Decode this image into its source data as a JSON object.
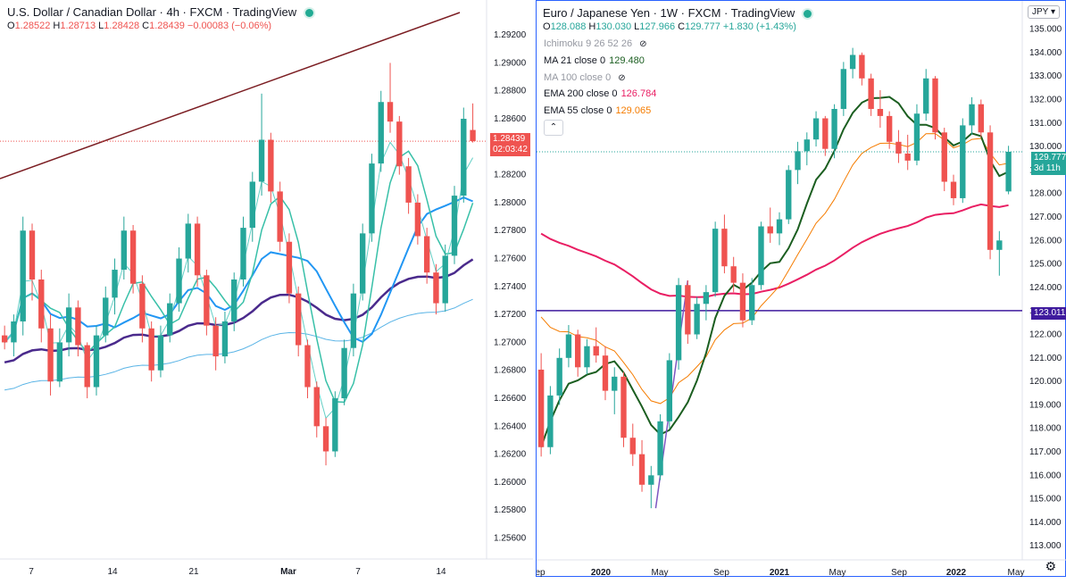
{
  "left_chart": {
    "title": "U.S. Dollar / Canadian Dollar · 4h · FXCM · TradingView",
    "ohlc": {
      "o": "1.28522",
      "h": "1.28713",
      "l": "1.28428",
      "c": "1.28439",
      "chg": "−0.00083 (−0.06%)"
    },
    "price_tag": {
      "value": "1.28439",
      "countdown": "02:03:42"
    },
    "colors": {
      "up": "#26a69a",
      "down": "#ef5350",
      "trendline": "#7b1d22",
      "ma_fast": "#38c0a8",
      "ma_mid": "#2196f3",
      "ma_slow": "#4a2a8c",
      "ma_long": "#5ab4e6"
    }
  },
  "right_chart": {
    "title": "Euro / Japanese Yen · 1W · FXCM · TradingView",
    "ohlc": {
      "o": "128.088",
      "h": "130.030",
      "l": "127.966",
      "c": "129.777",
      "chg": "+1.830 (+1.43%)"
    },
    "indicators": [
      {
        "label": "Ichimoku 9 26 52 26",
        "value": "",
        "hidden": true,
        "color": "#9598a1"
      },
      {
        "label": "MA 21 close 0",
        "value": "129.480",
        "hidden": false,
        "color": "#1b5e20"
      },
      {
        "label": "MA 100 close 0",
        "value": "",
        "hidden": true,
        "color": "#9598a1"
      },
      {
        "label": "EMA 200 close 0",
        "value": "126.784",
        "hidden": false,
        "color": "#e91e63"
      },
      {
        "label": "EMA 55 close 0",
        "value": "129.065",
        "hidden": false,
        "color": "#f57c00"
      }
    ],
    "currency": "JPY",
    "price_tag": {
      "value": "129.777",
      "countdown": "3d 11h"
    },
    "hline_tag": "123.011",
    "colors": {
      "up": "#26a69a",
      "down": "#ef5350",
      "ma21": "#1b5e20",
      "ema200": "#e91e63",
      "ema55": "#f57c00",
      "hline": "#3f1b9e",
      "trend": "#7e57c2"
    }
  },
  "chart_data": [
    {
      "type": "candlestick",
      "title": "U.S. Dollar / Canadian Dollar · 4h · FXCM · TradingView",
      "ylim": [
        1.2545,
        1.2945
      ],
      "y_ticks": [
        "1.29200",
        "1.29000",
        "1.28800",
        "1.28600",
        "1.28400",
        "1.28200",
        "1.28000",
        "1.27800",
        "1.27600",
        "1.27400",
        "1.27200",
        "1.27000",
        "1.26800",
        "1.26600",
        "1.26400",
        "1.26200",
        "1.26000",
        "1.25800",
        "1.25600"
      ],
      "x_ticks": [
        {
          "label": "7",
          "bold": false
        },
        {
          "label": "14",
          "bold": false
        },
        {
          "label": "21",
          "bold": false
        },
        {
          "label": "Mar",
          "bold": true
        },
        {
          "label": "7",
          "bold": false
        },
        {
          "label": "14",
          "bold": false
        }
      ],
      "candles": [
        [
          1.2705,
          1.2712,
          1.2695,
          1.27
        ],
        [
          1.27,
          1.272,
          1.269,
          1.2715
        ],
        [
          1.2715,
          1.279,
          1.2705,
          1.278
        ],
        [
          1.278,
          1.2785,
          1.273,
          1.2745
        ],
        [
          1.2745,
          1.2752,
          1.27,
          1.271
        ],
        [
          1.271,
          1.272,
          1.2662,
          1.2672
        ],
        [
          1.2672,
          1.271,
          1.2668,
          1.27
        ],
        [
          1.27,
          1.2735,
          1.269,
          1.2725
        ],
        [
          1.2725,
          1.273,
          1.269,
          1.2698
        ],
        [
          1.2698,
          1.27,
          1.266,
          1.2668
        ],
        [
          1.2668,
          1.2712,
          1.2662,
          1.2705
        ],
        [
          1.2705,
          1.274,
          1.27,
          1.2732
        ],
        [
          1.2732,
          1.276,
          1.272,
          1.2752
        ],
        [
          1.2752,
          1.279,
          1.2745,
          1.278
        ],
        [
          1.278,
          1.2784,
          1.2735,
          1.2742
        ],
        [
          1.2742,
          1.2748,
          1.27,
          1.271
        ],
        [
          1.271,
          1.2715,
          1.2672,
          1.268
        ],
        [
          1.268,
          1.2712,
          1.2675,
          1.2705
        ],
        [
          1.2705,
          1.2735,
          1.27,
          1.2728
        ],
        [
          1.2728,
          1.2768,
          1.2722,
          1.276
        ],
        [
          1.276,
          1.2792,
          1.275,
          1.2785
        ],
        [
          1.2785,
          1.279,
          1.274,
          1.2748
        ],
        [
          1.2748,
          1.2752,
          1.2705,
          1.2712
        ],
        [
          1.2712,
          1.2718,
          1.268,
          1.269
        ],
        [
          1.269,
          1.2722,
          1.2685,
          1.2715
        ],
        [
          1.2715,
          1.275,
          1.2708,
          1.2745
        ],
        [
          1.2745,
          1.279,
          1.274,
          1.2782
        ],
        [
          1.2782,
          1.2822,
          1.2772,
          1.2815
        ],
        [
          1.2815,
          1.2878,
          1.2805,
          1.2845
        ],
        [
          1.2845,
          1.285,
          1.28,
          1.2808
        ],
        [
          1.2808,
          1.2815,
          1.2765,
          1.2772
        ],
        [
          1.2772,
          1.2778,
          1.2728,
          1.2735
        ],
        [
          1.2735,
          1.274,
          1.269,
          1.2698
        ],
        [
          1.2698,
          1.2702,
          1.266,
          1.2668
        ],
        [
          1.2668,
          1.2672,
          1.2632,
          1.264
        ],
        [
          1.264,
          1.2646,
          1.2612,
          1.2622
        ],
        [
          1.2622,
          1.2665,
          1.2618,
          1.266
        ],
        [
          1.266,
          1.2702,
          1.2655,
          1.2696
        ],
        [
          1.2696,
          1.2742,
          1.269,
          1.2735
        ],
        [
          1.2735,
          1.2785,
          1.273,
          1.2778
        ],
        [
          1.2778,
          1.2835,
          1.2772,
          1.2828
        ],
        [
          1.2828,
          1.288,
          1.2822,
          1.2872
        ],
        [
          1.2872,
          1.29,
          1.285,
          1.2858
        ],
        [
          1.2858,
          1.2862,
          1.282,
          1.2826
        ],
        [
          1.2826,
          1.2832,
          1.2792,
          1.28
        ],
        [
          1.28,
          1.2806,
          1.277,
          1.2776
        ],
        [
          1.2776,
          1.2782,
          1.2742,
          1.275
        ],
        [
          1.275,
          1.2756,
          1.272,
          1.2728
        ],
        [
          1.2728,
          1.277,
          1.2722,
          1.2762
        ],
        [
          1.2762,
          1.2812,
          1.2756,
          1.2805
        ],
        [
          1.2805,
          1.2868,
          1.28,
          1.286
        ],
        [
          1.2852,
          1.2871,
          1.2843,
          1.2844
        ]
      ]
    },
    {
      "type": "candlestick",
      "title": "Euro / Japanese Yen · 1W · FXCM · TradingView",
      "ylim": [
        112.4,
        136.2
      ],
      "y_ticks": [
        "135.000",
        "134.000",
        "133.000",
        "132.000",
        "131.000",
        "130.000",
        "129.000",
        "128.000",
        "127.000",
        "126.000",
        "125.000",
        "124.000",
        "123.000",
        "122.000",
        "121.000",
        "120.000",
        "119.000",
        "118.000",
        "117.000",
        "116.000",
        "115.000",
        "114.000",
        "113.000"
      ],
      "x_ticks": [
        {
          "label": "ep",
          "bold": false
        },
        {
          "label": "2020",
          "bold": true
        },
        {
          "label": "May",
          "bold": false
        },
        {
          "label": "Sep",
          "bold": false
        },
        {
          "label": "2021",
          "bold": true
        },
        {
          "label": "May",
          "bold": false
        },
        {
          "label": "Sep",
          "bold": false
        },
        {
          "label": "2022",
          "bold": true
        },
        {
          "label": "May",
          "bold": false
        }
      ],
      "hline": 123.011,
      "candles": [
        [
          120.5,
          121.2,
          116.8,
          117.2
        ],
        [
          117.2,
          119.8,
          116.9,
          119.4
        ],
        [
          119.4,
          121.4,
          119.0,
          121.0
        ],
        [
          121.0,
          122.4,
          120.6,
          122.0
        ],
        [
          122.0,
          122.2,
          120.2,
          120.6
        ],
        [
          120.6,
          121.8,
          120.3,
          121.5
        ],
        [
          121.5,
          122.3,
          120.8,
          121.1
        ],
        [
          121.1,
          121.5,
          119.2,
          119.6
        ],
        [
          119.6,
          120.6,
          118.6,
          120.2
        ],
        [
          120.2,
          120.4,
          117.2,
          117.6
        ],
        [
          117.6,
          118.2,
          116.4,
          116.9
        ],
        [
          116.9,
          117.5,
          115.3,
          115.6
        ],
        [
          115.6,
          116.4,
          114.6,
          116.0
        ],
        [
          116.0,
          118.6,
          115.8,
          118.3
        ],
        [
          118.3,
          121.2,
          118.0,
          120.9
        ],
        [
          120.9,
          124.4,
          120.5,
          124.1
        ],
        [
          124.1,
          124.3,
          121.6,
          122.0
        ],
        [
          122.0,
          123.6,
          121.8,
          123.3
        ],
        [
          123.3,
          124.1,
          122.6,
          123.8
        ],
        [
          123.8,
          126.8,
          123.6,
          126.5
        ],
        [
          126.5,
          127.1,
          124.6,
          124.9
        ],
        [
          124.9,
          125.3,
          123.8,
          124.2
        ],
        [
          124.2,
          124.6,
          122.3,
          122.6
        ],
        [
          122.6,
          124.4,
          122.4,
          124.1
        ],
        [
          124.1,
          126.8,
          123.9,
          126.6
        ],
        [
          126.6,
          127.4,
          125.9,
          126.3
        ],
        [
          126.3,
          127.2,
          125.8,
          126.9
        ],
        [
          126.9,
          129.2,
          126.7,
          129.0
        ],
        [
          129.0,
          130.2,
          128.4,
          129.8
        ],
        [
          129.8,
          130.6,
          129.2,
          130.3
        ],
        [
          130.3,
          131.5,
          130.0,
          131.2
        ],
        [
          131.2,
          131.3,
          129.6,
          129.9
        ],
        [
          129.9,
          131.8,
          129.5,
          131.6
        ],
        [
          131.6,
          133.6,
          131.3,
          133.3
        ],
        [
          133.3,
          134.2,
          132.9,
          133.9
        ],
        [
          133.9,
          134.0,
          132.6,
          132.9
        ],
        [
          132.9,
          133.1,
          131.3,
          131.6
        ],
        [
          131.6,
          132.4,
          130.8,
          131.3
        ],
        [
          131.3,
          131.5,
          129.9,
          130.2
        ],
        [
          130.2,
          130.7,
          129.3,
          129.7
        ],
        [
          129.7,
          130.5,
          129.0,
          129.4
        ],
        [
          129.4,
          131.8,
          129.2,
          131.4
        ],
        [
          131.4,
          133.3,
          131.1,
          132.9
        ],
        [
          132.9,
          133.0,
          130.3,
          130.6
        ],
        [
          130.6,
          130.8,
          128.1,
          128.5
        ],
        [
          128.5,
          128.8,
          127.5,
          127.8
        ],
        [
          127.8,
          131.2,
          127.6,
          130.9
        ],
        [
          130.9,
          132.1,
          130.5,
          131.8
        ],
        [
          131.8,
          132.0,
          130.4,
          130.6
        ],
        [
          130.6,
          130.9,
          125.2,
          125.6
        ],
        [
          125.6,
          126.4,
          124.5,
          126.0
        ],
        [
          128.088,
          130.03,
          127.966,
          129.777
        ]
      ]
    }
  ]
}
